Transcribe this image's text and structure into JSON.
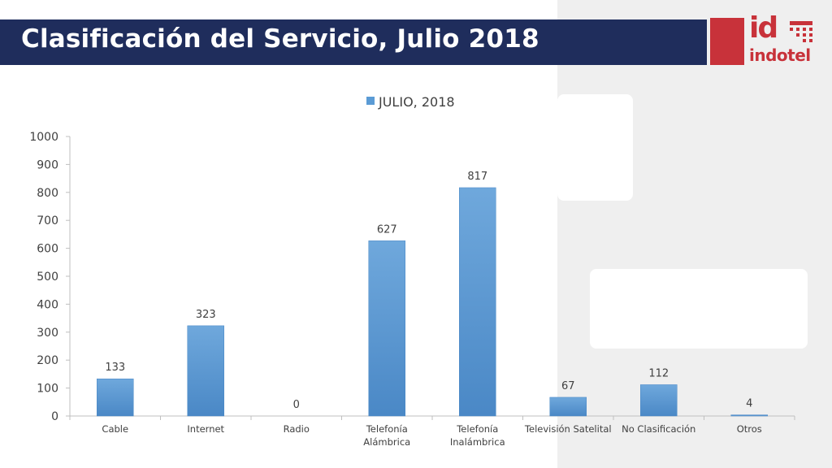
{
  "header": {
    "title": "Clasificación del Servicio, Julio 2018"
  },
  "logo": {
    "mark": "id",
    "name": "indotel"
  },
  "colors": {
    "title_bar": "#1f2d5c",
    "bar_fill": "#5b9bd5",
    "brand_red": "#c8323a"
  },
  "chart_data": {
    "type": "bar",
    "title": "",
    "xlabel": "",
    "ylabel": "",
    "ylim": [
      0,
      1000
    ],
    "yticks": [
      0,
      100,
      200,
      300,
      400,
      500,
      600,
      700,
      800,
      900,
      1000
    ],
    "grid": false,
    "legend_position": "top",
    "categories": [
      [
        "Cable"
      ],
      [
        "Internet"
      ],
      [
        "Radio"
      ],
      [
        "Telefonía",
        "Alámbrica"
      ],
      [
        "Telefonía",
        "Inalámbrica"
      ],
      [
        "Televisión Satelital"
      ],
      [
        "No Clasificación"
      ],
      [
        "Otros"
      ]
    ],
    "series": [
      {
        "name": "JULIO, 2018",
        "values": [
          133,
          323,
          0,
          627,
          817,
          67,
          112,
          4
        ]
      }
    ]
  }
}
